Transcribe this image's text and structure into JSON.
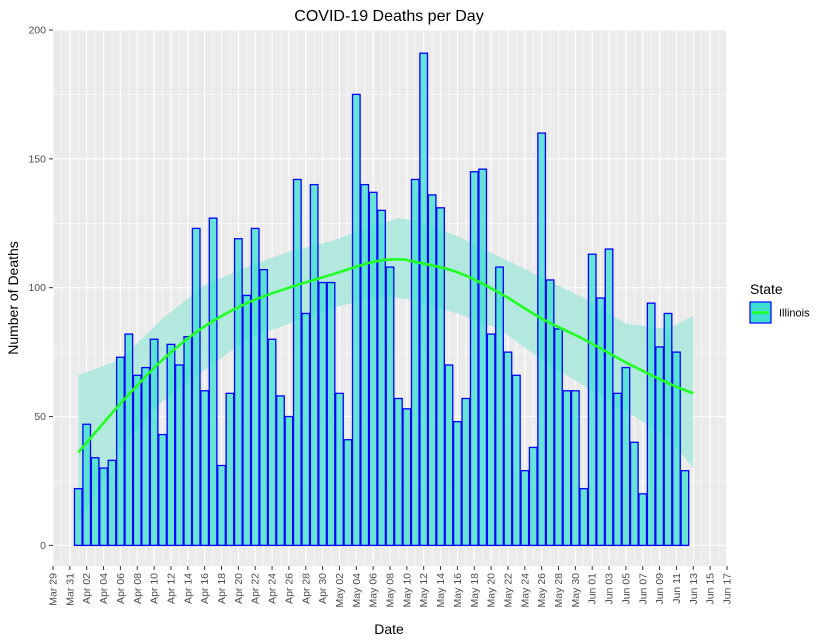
{
  "chart_data": {
    "type": "bar",
    "title": "COVID-19 Deaths per Day",
    "xlabel": "Date",
    "ylabel": "Number of Deaths",
    "ylim": [
      -8,
      200
    ],
    "yticks": [
      0,
      50,
      100,
      150,
      200
    ],
    "xlim": [
      "2020-03-29",
      "2020-06-17"
    ],
    "xticks": [
      {
        "date": "2020-03-29",
        "label": "Mar 29"
      },
      {
        "date": "2020-03-31",
        "label": "Mar 31"
      },
      {
        "date": "2020-04-02",
        "label": "Apr 02"
      },
      {
        "date": "2020-04-04",
        "label": "Apr 04"
      },
      {
        "date": "2020-04-06",
        "label": "Apr 06"
      },
      {
        "date": "2020-04-08",
        "label": "Apr 08"
      },
      {
        "date": "2020-04-10",
        "label": "Apr 10"
      },
      {
        "date": "2020-04-12",
        "label": "Apr 12"
      },
      {
        "date": "2020-04-14",
        "label": "Apr 14"
      },
      {
        "date": "2020-04-16",
        "label": "Apr 16"
      },
      {
        "date": "2020-04-18",
        "label": "Apr 18"
      },
      {
        "date": "2020-04-20",
        "label": "Apr 20"
      },
      {
        "date": "2020-04-22",
        "label": "Apr 22"
      },
      {
        "date": "2020-04-24",
        "label": "Apr 24"
      },
      {
        "date": "2020-04-26",
        "label": "Apr 26"
      },
      {
        "date": "2020-04-28",
        "label": "Apr 28"
      },
      {
        "date": "2020-04-30",
        "label": "Apr 30"
      },
      {
        "date": "2020-05-02",
        "label": "May 02"
      },
      {
        "date": "2020-05-04",
        "label": "May 04"
      },
      {
        "date": "2020-05-06",
        "label": "May 06"
      },
      {
        "date": "2020-05-08",
        "label": "May 08"
      },
      {
        "date": "2020-05-10",
        "label": "May 10"
      },
      {
        "date": "2020-05-12",
        "label": "May 12"
      },
      {
        "date": "2020-05-14",
        "label": "May 14"
      },
      {
        "date": "2020-05-16",
        "label": "May 16"
      },
      {
        "date": "2020-05-18",
        "label": "May 18"
      },
      {
        "date": "2020-05-20",
        "label": "May 20"
      },
      {
        "date": "2020-05-22",
        "label": "May 22"
      },
      {
        "date": "2020-05-24",
        "label": "May 24"
      },
      {
        "date": "2020-05-26",
        "label": "May 26"
      },
      {
        "date": "2020-05-28",
        "label": "May 28"
      },
      {
        "date": "2020-05-30",
        "label": "May 30"
      },
      {
        "date": "2020-06-01",
        "label": "Jun 01"
      },
      {
        "date": "2020-06-03",
        "label": "Jun 03"
      },
      {
        "date": "2020-06-05",
        "label": "Jun 05"
      },
      {
        "date": "2020-06-07",
        "label": "Jun 07"
      },
      {
        "date": "2020-06-09",
        "label": "Jun 09"
      },
      {
        "date": "2020-06-11",
        "label": "Jun 11"
      },
      {
        "date": "2020-06-13",
        "label": "Jun 13"
      },
      {
        "date": "2020-06-15",
        "label": "Jun 15"
      },
      {
        "date": "2020-06-17",
        "label": "Jun 17"
      }
    ],
    "grid": true,
    "legend": {
      "title": "State",
      "position": "right",
      "entries": [
        {
          "label": "Illinois"
        }
      ]
    },
    "series": [
      {
        "name": "Illinois",
        "type": "bar",
        "fill": "#40e0d0",
        "stroke": "#0000ff",
        "x": [
          "2020-04-01",
          "2020-04-02",
          "2020-04-03",
          "2020-04-04",
          "2020-04-05",
          "2020-04-06",
          "2020-04-07",
          "2020-04-08",
          "2020-04-09",
          "2020-04-10",
          "2020-04-11",
          "2020-04-12",
          "2020-04-13",
          "2020-04-14",
          "2020-04-15",
          "2020-04-16",
          "2020-04-17",
          "2020-04-18",
          "2020-04-19",
          "2020-04-20",
          "2020-04-21",
          "2020-04-22",
          "2020-04-23",
          "2020-04-24",
          "2020-04-25",
          "2020-04-26",
          "2020-04-27",
          "2020-04-28",
          "2020-04-29",
          "2020-04-30",
          "2020-05-01",
          "2020-05-02",
          "2020-05-03",
          "2020-05-04",
          "2020-05-05",
          "2020-05-06",
          "2020-05-07",
          "2020-05-08",
          "2020-05-09",
          "2020-05-10",
          "2020-05-11",
          "2020-05-12",
          "2020-05-13",
          "2020-05-14",
          "2020-05-15",
          "2020-05-16",
          "2020-05-17",
          "2020-05-18",
          "2020-05-19",
          "2020-05-20",
          "2020-05-21",
          "2020-05-22",
          "2020-05-23",
          "2020-05-24",
          "2020-05-25",
          "2020-05-26",
          "2020-05-27",
          "2020-05-28",
          "2020-05-29",
          "2020-05-30",
          "2020-05-31",
          "2020-06-01",
          "2020-06-02",
          "2020-06-03",
          "2020-06-04",
          "2020-06-05",
          "2020-06-06",
          "2020-06-07",
          "2020-06-08",
          "2020-06-09",
          "2020-06-10",
          "2020-06-11",
          "2020-06-12"
        ],
        "values": [
          22,
          47,
          34,
          30,
          33,
          73,
          82,
          66,
          69,
          80,
          43,
          78,
          70,
          81,
          123,
          60,
          127,
          31,
          59,
          119,
          97,
          123,
          107,
          80,
          58,
          50,
          142,
          90,
          140,
          102,
          102,
          59,
          41,
          175,
          140,
          137,
          130,
          108,
          57,
          53,
          142,
          191,
          136,
          131,
          70,
          48,
          57,
          145,
          146,
          82,
          108,
          75,
          66,
          29,
          38,
          160,
          103,
          84,
          60,
          60,
          22,
          113,
          96,
          115,
          59,
          69,
          40,
          20,
          94,
          77,
          90,
          75,
          29
        ]
      },
      {
        "name": "Illinois",
        "type": "smooth",
        "stroke": "#22ff22",
        "band_fill": "#a8e8dc",
        "x": [
          "2020-04-01",
          "2020-04-06",
          "2020-04-11",
          "2020-04-16",
          "2020-04-21",
          "2020-04-26",
          "2020-05-01",
          "2020-05-06",
          "2020-05-09",
          "2020-05-11",
          "2020-05-16",
          "2020-05-21",
          "2020-05-26",
          "2020-05-31",
          "2020-06-05",
          "2020-06-10",
          "2020-06-13"
        ],
        "values": [
          36,
          55,
          72,
          85,
          94,
          100,
          105,
          110,
          111,
          110,
          106,
          98,
          88,
          80,
          71,
          63,
          59
        ],
        "lower": [
          8,
          38,
          56,
          68,
          80,
          86,
          92,
          96,
          96,
          95,
          90,
          84,
          72,
          62,
          52,
          42,
          30
        ],
        "upper": [
          66,
          72,
          88,
          101,
          108,
          114,
          118,
          124,
          127,
          126,
          120,
          112,
          104,
          96,
          86,
          84,
          89
        ]
      }
    ]
  }
}
